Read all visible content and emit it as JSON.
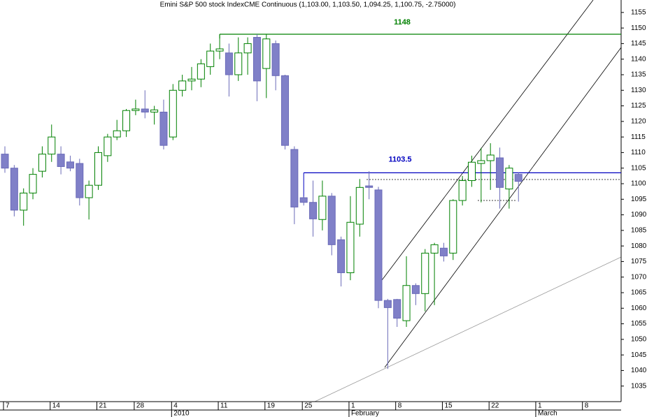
{
  "chart_data": {
    "type": "candlestick",
    "title": "Emini S&P 500 stock IndexCME Continuous (1,103.00, 1,103.50, 1,094.25, 1,100.75, -2.75000)",
    "categories": [
      "7",
      null,
      null,
      null,
      null,
      "14",
      null,
      null,
      null,
      null,
      "21",
      null,
      null,
      null,
      "28",
      null,
      null,
      null,
      "4",
      null,
      null,
      null,
      null,
      "11",
      null,
      null,
      null,
      null,
      "19",
      null,
      null,
      null,
      "25",
      null,
      null,
      null,
      null,
      "1",
      null,
      null,
      null,
      null,
      "8",
      null,
      null,
      null,
      null,
      "15",
      null,
      null,
      null,
      null,
      "22",
      null,
      null,
      null,
      null,
      "1",
      null,
      null,
      null,
      null,
      "8",
      null,
      null,
      null,
      null
    ],
    "period_labels": [
      null,
      null,
      null,
      null,
      null,
      null,
      null,
      null,
      null,
      null,
      null,
      null,
      null,
      null,
      null,
      null,
      null,
      null,
      "2010",
      null,
      null,
      null,
      null,
      null,
      null,
      null,
      null,
      null,
      null,
      null,
      null,
      null,
      null,
      null,
      null,
      null,
      null,
      "February",
      null,
      null,
      null,
      null,
      null,
      null,
      null,
      null,
      null,
      null,
      null,
      null,
      null,
      null,
      null,
      null,
      null,
      null,
      null,
      "March",
      null,
      null,
      null,
      null,
      null,
      null,
      null,
      null,
      null
    ],
    "open": [
      1109.5,
      1105,
      1091.5,
      1097,
      1104,
      1109.5,
      1109.5,
      1107,
      1106.5,
      1095.5,
      1099.5,
      1109,
      1115,
      1117,
      1123.5,
      1124,
      1123,
      1123,
      1115,
      1130,
      1133,
      1133.6,
      1137.6,
      1142.6,
      1142,
      1135,
      1142,
      1147,
      1137,
      1145,
      1134.7,
      1111,
      1095.5,
      1094,
      1088.5,
      1096,
      1082,
      1071.4,
      1087,
      1099.3,
      1098,
      1062.5,
      1062.8,
      1056,
      1067.3,
      1064.7,
      1077.7,
      1079.3,
      1077.7,
      1094.6,
      1101,
      1106.5,
      1107.4,
      1108.3,
      1098.3,
      1103,
      null,
      null,
      null,
      null,
      null,
      null,
      null,
      null,
      null,
      null,
      null
    ],
    "high": [
      1112,
      1106,
      1098.5,
      1105,
      1112,
      1119,
      1112,
      1109,
      1108,
      1101,
      1112,
      1116,
      1120.5,
      1124,
      1127,
      1130,
      1125,
      1127,
      1132,
      1135,
      1137.5,
      1140,
      1145,
      1148,
      1145,
      1147,
      1147,
      1148,
      1148,
      1146,
      1135,
      1112,
      1096,
      1101,
      1101,
      1097,
      1083,
      1096,
      1101.5,
      1104,
      1099,
      1063,
      1063,
      1076.7,
      1068,
      1079,
      1081,
      1081,
      1095,
      1102.5,
      1109,
      1111.5,
      1113,
      1111.6,
      1106,
      1103.5,
      null,
      null,
      null,
      null,
      null,
      null,
      null,
      null,
      null,
      null,
      null
    ],
    "low": [
      1103.5,
      1089.5,
      1086.5,
      1095,
      1102,
      1107,
      1103,
      1104,
      1093,
      1088.5,
      1098,
      1107,
      1114,
      1115,
      1122,
      1121,
      1119,
      1111,
      1114,
      1128,
      1130,
      1131,
      1135,
      1140,
      1128,
      1133,
      1135,
      1126.5,
      1127.5,
      1130,
      1111,
      1087,
      1093,
      1083,
      1085,
      1077,
      1067,
      1069,
      1083,
      1095,
      1060,
      1040.5,
      1054,
      1054,
      1061,
      1059,
      1061,
      1075,
      1075.5,
      1093,
      1099,
      1094,
      1098,
      1092,
      1092,
      1094.25,
      null,
      null,
      null,
      null,
      null,
      null,
      null,
      null,
      null,
      null,
      null
    ],
    "close": [
      1105,
      1091.5,
      1097,
      1103,
      1109.5,
      1115,
      1105.5,
      1105,
      1095.5,
      1099.5,
      1110,
      1115,
      1117,
      1123.5,
      1124,
      1123,
      1123.7,
      1112.3,
      1130,
      1133,
      1133.6,
      1138.5,
      1142.6,
      1143.3,
      1135,
      1142,
      1145,
      1133,
      1146.5,
      1134.7,
      1112.3,
      1092.5,
      1094,
      1088.7,
      1096,
      1080.4,
      1071.4,
      1087.6,
      1098.8,
      1098.8,
      1062.5,
      1060.2,
      1056.8,
      1067.3,
      1064.7,
      1077.7,
      1080.4,
      1076.8,
      1094.6,
      1101,
      1106.9,
      1107.4,
      1109.2,
      1098.8,
      1105,
      1100.75,
      null,
      null,
      null,
      null,
      null,
      null,
      null,
      null,
      null,
      null,
      null
    ],
    "ylim": [
      1030,
      1159
    ],
    "yticks": [
      1035,
      1040,
      1045,
      1050,
      1055,
      1060,
      1065,
      1070,
      1075,
      1080,
      1085,
      1090,
      1095,
      1100,
      1105,
      1110,
      1115,
      1120,
      1125,
      1130,
      1135,
      1140,
      1145,
      1150,
      1155
    ],
    "up_color": "#008000",
    "down_color": "#8080c8",
    "levels": [
      {
        "value": 1148,
        "color": "#008000"
      },
      {
        "value": 1103.5,
        "color": "#0000c0"
      }
    ]
  }
}
